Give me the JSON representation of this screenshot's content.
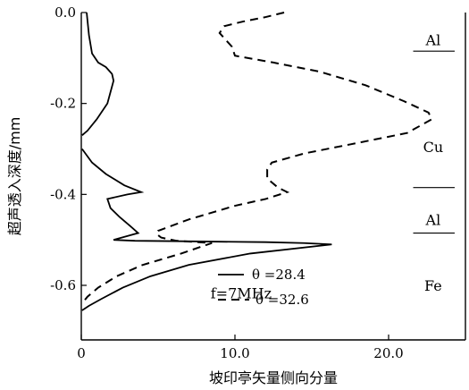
{
  "chart_data": {
    "type": "line",
    "xlabel": "坡印亭矢量侧向分量",
    "ylabel": "超声透入深度/mm",
    "xlim": [
      0,
      25
    ],
    "ylim": [
      -0.72,
      0
    ],
    "x_ticks": [
      {
        "value": 0,
        "label": "0"
      },
      {
        "value": 10,
        "label": "10.0"
      },
      {
        "value": 20,
        "label": "20.0"
      }
    ],
    "y_ticks": [
      {
        "value": 0,
        "label": "0.0"
      },
      {
        "value": -0.2,
        "label": "-0.2"
      },
      {
        "value": -0.4,
        "label": "-0.4"
      },
      {
        "value": -0.6,
        "label": "-0.6"
      }
    ],
    "series": [
      {
        "name": "θ =28.4",
        "style": "solid",
        "points": [
          [
            0.35,
            0.0
          ],
          [
            0.5,
            -0.05
          ],
          [
            0.7,
            -0.09
          ],
          [
            1.1,
            -0.11
          ],
          [
            1.6,
            -0.12
          ],
          [
            2.0,
            -0.135
          ],
          [
            2.1,
            -0.15
          ],
          [
            1.7,
            -0.2
          ],
          [
            1.0,
            -0.235
          ],
          [
            0.4,
            -0.26
          ],
          [
            0.05,
            -0.27
          ],
          null,
          [
            0.05,
            -0.3
          ],
          [
            0.7,
            -0.33
          ],
          [
            1.6,
            -0.355
          ],
          [
            2.8,
            -0.38
          ],
          [
            3.9,
            -0.395
          ],
          [
            3.0,
            -0.4
          ],
          [
            1.7,
            -0.41
          ],
          [
            1.9,
            -0.43
          ],
          [
            2.5,
            -0.45
          ],
          [
            3.2,
            -0.47
          ],
          [
            3.7,
            -0.485
          ],
          [
            2.1,
            -0.5
          ],
          [
            3.5,
            -0.502
          ],
          [
            6.5,
            -0.503
          ],
          [
            9.0,
            -0.504
          ],
          [
            12.0,
            -0.505
          ],
          [
            14.5,
            -0.507
          ],
          [
            16.3,
            -0.51
          ],
          [
            11.0,
            -0.53
          ],
          [
            7.0,
            -0.555
          ],
          [
            4.5,
            -0.58
          ],
          [
            2.7,
            -0.605
          ],
          [
            1.3,
            -0.63
          ],
          [
            0.5,
            -0.645
          ],
          [
            0.05,
            -0.655
          ]
        ]
      },
      {
        "name": "θ =32.6",
        "style": "dashed",
        "points": [
          [
            13.2,
            0.0
          ],
          [
            12.0,
            -0.01
          ],
          [
            10.5,
            -0.02
          ],
          [
            9.3,
            -0.03
          ],
          [
            9.0,
            -0.045
          ],
          [
            9.4,
            -0.06
          ],
          [
            9.8,
            -0.075
          ],
          [
            10.0,
            -0.095
          ],
          [
            12.5,
            -0.11
          ],
          [
            15.5,
            -0.13
          ],
          [
            18.5,
            -0.16
          ],
          [
            21.0,
            -0.195
          ],
          [
            22.6,
            -0.22
          ],
          [
            22.8,
            -0.235
          ],
          [
            21.2,
            -0.265
          ],
          [
            17.5,
            -0.29
          ],
          [
            14.5,
            -0.31
          ],
          [
            12.4,
            -0.33
          ],
          [
            12.1,
            -0.345
          ],
          [
            12.1,
            -0.365
          ],
          [
            12.8,
            -0.385
          ],
          [
            13.4,
            -0.395
          ],
          [
            12.0,
            -0.41
          ],
          [
            10.0,
            -0.425
          ],
          [
            8.5,
            -0.44
          ],
          [
            7.0,
            -0.455
          ],
          [
            5.8,
            -0.47
          ],
          [
            5.0,
            -0.48
          ],
          [
            4.9,
            -0.487
          ],
          [
            5.2,
            -0.495
          ],
          [
            6.2,
            -0.502
          ],
          [
            7.6,
            -0.505
          ],
          [
            8.5,
            -0.507
          ],
          [
            6.5,
            -0.53
          ],
          [
            4.0,
            -0.555
          ],
          [
            2.3,
            -0.58
          ],
          [
            1.1,
            -0.605
          ],
          [
            0.4,
            -0.625
          ],
          [
            0.05,
            -0.64
          ]
        ]
      }
    ],
    "annotations": [
      {
        "label": "Al",
        "x": 22.9,
        "y": -0.06
      },
      {
        "label": "Cu",
        "x": 22.9,
        "y": -0.295
      },
      {
        "label": "Al",
        "x": 22.9,
        "y": -0.455
      },
      {
        "label": "Fe",
        "x": 22.9,
        "y": -0.6
      },
      {
        "label": "f=7MHz",
        "x": 10.4,
        "y": -0.617
      }
    ],
    "layer_boundaries": [
      -0.085,
      -0.385,
      -0.485
    ],
    "legend": {
      "position": "bottom-center",
      "style": "solid-and-dashed"
    }
  }
}
